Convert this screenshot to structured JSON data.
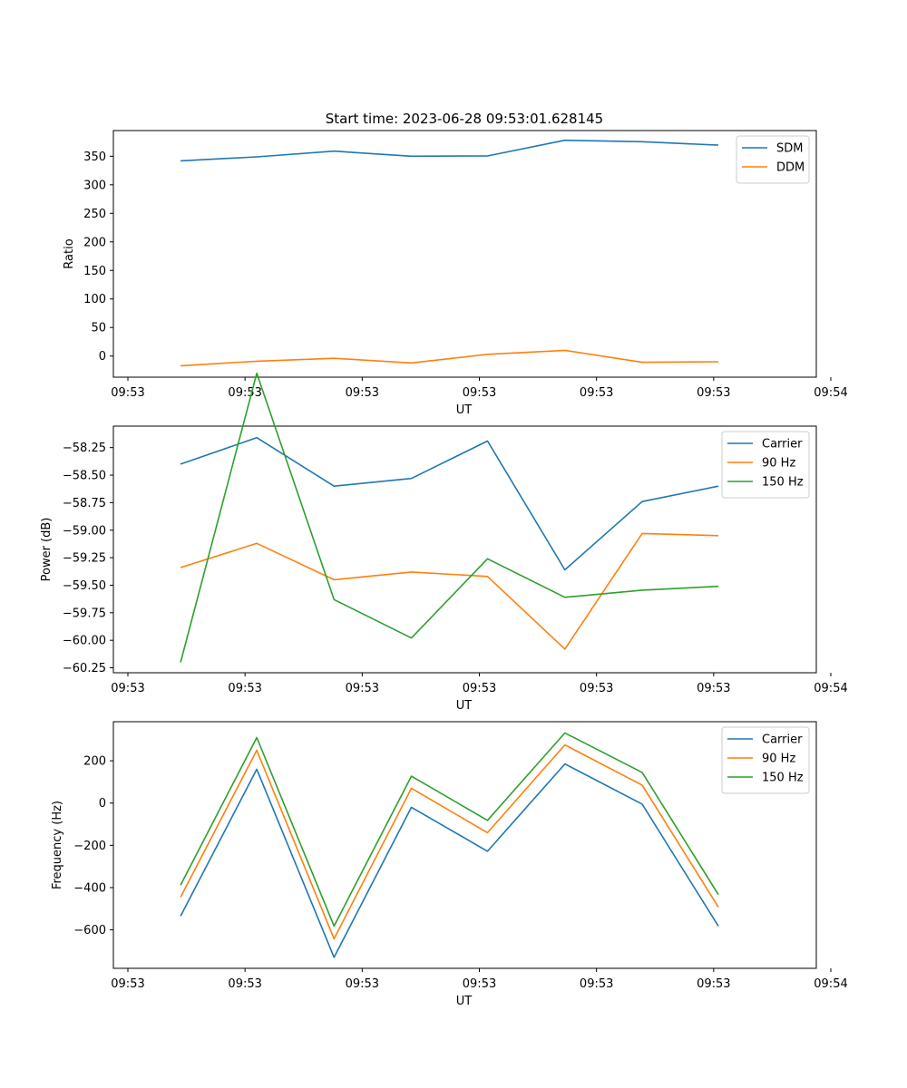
{
  "figure": {
    "title": "Start time: 2023-06-28 09:53:01.628145"
  },
  "colors": {
    "blue": "#1f77b4",
    "orange": "#ff7f0e",
    "green": "#2ca02c"
  },
  "chart_data": [
    {
      "type": "line",
      "title": "Start time: 2023-06-28 09:53:01.628145",
      "xlabel": "UT",
      "ylabel": "Ratio",
      "x": [
        0.45,
        1.1,
        1.76,
        2.42,
        3.07,
        3.73,
        4.39,
        5.04
      ],
      "xlim": [
        0,
        6.0
      ],
      "ylim": [
        -37,
        395
      ],
      "yticks": [
        0,
        50,
        100,
        150,
        200,
        250,
        300,
        350
      ],
      "xticks": [
        0,
        1,
        2,
        3,
        4,
        5,
        6
      ],
      "xticklabels": [
        "09:53",
        "09:53",
        "09:53",
        "09:53",
        "09:53",
        "09:53",
        "09:54"
      ],
      "legend_position": "top-right",
      "series": [
        {
          "name": "SDM",
          "color": "#1f77b4",
          "values": [
            342,
            349,
            359,
            350,
            350.5,
            378,
            375.5,
            369.5
          ]
        },
        {
          "name": "DDM",
          "color": "#ff7f0e",
          "values": [
            -17,
            -9,
            -4,
            -12,
            3,
            10,
            -11,
            -10
          ]
        }
      ]
    },
    {
      "type": "line",
      "xlabel": "UT",
      "ylabel": "Power (dB)",
      "x": [
        0.45,
        1.1,
        1.76,
        2.42,
        3.07,
        3.73,
        4.39,
        5.04
      ],
      "xlim": [
        0,
        6.0
      ],
      "ylim": [
        -60.295,
        -58.055
      ],
      "yticks": [
        -58.25,
        -58.5,
        -58.75,
        -59.0,
        -59.25,
        -59.5,
        -59.75,
        -60.0,
        -60.25
      ],
      "yticklabels": [
        "−58.25",
        "−58.50",
        "−58.75",
        "−59.00",
        "−59.25",
        "−59.50",
        "−59.75",
        "−60.00",
        "−60.25"
      ],
      "xticks": [
        0,
        1,
        2,
        3,
        4,
        5,
        6
      ],
      "xticklabels": [
        "09:53",
        "09:53",
        "09:53",
        "09:53",
        "09:53",
        "09:53",
        "09:54"
      ],
      "legend_position": "top-right",
      "series": [
        {
          "name": "Carrier",
          "color": "#1f77b4",
          "values": [
            -58.4,
            -58.16,
            -58.6,
            -58.53,
            -58.19,
            -59.36,
            -58.74,
            -58.6
          ]
        },
        {
          "name": "90 Hz",
          "color": "#ff7f0e",
          "values": [
            -59.34,
            -59.12,
            -59.45,
            -59.38,
            -59.42,
            -60.08,
            -59.03,
            -59.05
          ]
        },
        {
          "name": "150 Hz",
          "color": "#2ca02c",
          "values": [
            -60.2,
            -57.575,
            -59.63,
            -59.98,
            -59.26,
            -59.61,
            -59.545,
            -59.51
          ]
        }
      ]
    },
    {
      "type": "line",
      "xlabel": "UT",
      "ylabel": "Frequency (Hz)",
      "x": [
        0.45,
        1.1,
        1.76,
        2.42,
        3.07,
        3.73,
        4.39,
        5.04
      ],
      "xlim": [
        0,
        6.0
      ],
      "ylim": [
        -782,
        385
      ],
      "yticks": [
        200,
        0,
        -200,
        -400,
        -600
      ],
      "yticklabels": [
        "200",
        "0",
        "−200",
        "−400",
        "−600"
      ],
      "xticks": [
        0,
        1,
        2,
        3,
        4,
        5,
        6
      ],
      "xticklabels": [
        "09:53",
        "09:53",
        "09:53",
        "09:53",
        "09:53",
        "09:53",
        "09:54"
      ],
      "legend_position": "top-right",
      "series": [
        {
          "name": "Carrier",
          "color": "#1f77b4",
          "values": [
            -535,
            160,
            -730,
            -20,
            -228,
            185,
            -5,
            -582
          ]
        },
        {
          "name": "90 Hz",
          "color": "#ff7f0e",
          "values": [
            -445,
            250,
            -642,
            70,
            -140,
            275,
            85,
            -492
          ]
        },
        {
          "name": "150 Hz",
          "color": "#2ca02c",
          "values": [
            -388,
            310,
            -582,
            127,
            -82,
            332,
            145,
            -433
          ]
        }
      ]
    }
  ]
}
